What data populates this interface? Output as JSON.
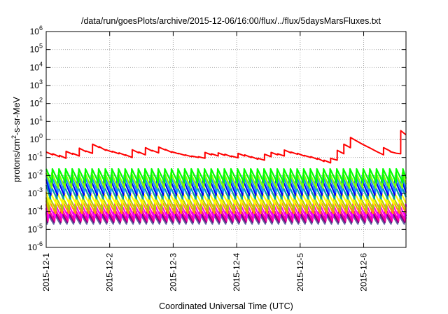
{
  "chart_data": {
    "type": "line",
    "title": "/data/run/goesPlots/archive/2015-12-06/16:00/flux/../flux/5daysMarsFluxes.txt",
    "xlabel": "Coordinated Universal Time (UTC)",
    "ylabel": {
      "prefix": "protons/cm",
      "sup": "2",
      "suffix": "-s-sr-MeV"
    },
    "yscale": "log",
    "ylim": [
      1e-06,
      1000000.0
    ],
    "y_ticks": [
      {
        "base": "10",
        "exp": "-6",
        "value": 1e-06
      },
      {
        "base": "10",
        "exp": "-5",
        "value": 1e-05
      },
      {
        "base": "10",
        "exp": "-4",
        "value": 0.0001
      },
      {
        "base": "10",
        "exp": "-3",
        "value": 0.001
      },
      {
        "base": "10",
        "exp": "-2",
        "value": 0.01
      },
      {
        "base": "10",
        "exp": "-1",
        "value": 0.1
      },
      {
        "base": "10",
        "exp": "0",
        "value": 1
      },
      {
        "base": "10",
        "exp": "1",
        "value": 10
      },
      {
        "base": "10",
        "exp": "2",
        "value": 100
      },
      {
        "base": "10",
        "exp": "3",
        "value": 1000
      },
      {
        "base": "10",
        "exp": "4",
        "value": 10000
      },
      {
        "base": "10",
        "exp": "5",
        "value": 100000
      },
      {
        "base": "10",
        "exp": "6",
        "value": 1000000
      }
    ],
    "xlim": [
      "2015-12-01",
      "2015-12-06 16:00"
    ],
    "x_ticks": [
      {
        "label": "2015-12-1",
        "value": "2015-12-01"
      },
      {
        "label": "2015-12-2",
        "value": "2015-12-02"
      },
      {
        "label": "2015-12-3",
        "value": "2015-12-03"
      },
      {
        "label": "2015-12-4",
        "value": "2015-12-04"
      },
      {
        "label": "2015-12-5",
        "value": "2015-12-05"
      },
      {
        "label": "2015-12-6",
        "value": "2015-12-06"
      }
    ],
    "grid": true,
    "series": [
      {
        "color": "#ff0000",
        "points": [
          [
            "2015-12-01 00:00",
            0.2
          ],
          [
            "2015-12-01 02:30",
            0.14
          ],
          [
            "2015-12-01 02:31",
            0.16
          ],
          [
            "2015-12-01 05:00",
            0.11
          ],
          [
            "2015-12-01 05:01",
            0.13
          ],
          [
            "2015-12-01 07:30",
            0.09
          ],
          [
            "2015-12-01 07:31",
            0.22
          ],
          [
            "2015-12-01 10:00",
            0.15
          ],
          [
            "2015-12-01 10:01",
            0.17
          ],
          [
            "2015-12-01 12:30",
            0.12
          ],
          [
            "2015-12-01 12:31",
            0.33
          ],
          [
            "2015-12-01 15:00",
            0.21
          ],
          [
            "2015-12-01 15:01",
            0.23
          ],
          [
            "2015-12-01 17:30",
            0.17
          ],
          [
            "2015-12-01 17:31",
            0.55
          ],
          [
            "2015-12-01 20:00",
            0.36
          ],
          [
            "2015-12-01 20:01",
            0.4
          ],
          [
            "2015-12-01 22:30",
            0.25
          ],
          [
            "2015-12-01 22:31",
            0.27
          ],
          [
            "2015-12-02 01:00",
            0.2
          ],
          [
            "2015-12-02 01:01",
            0.22
          ],
          [
            "2015-12-02 03:30",
            0.16
          ],
          [
            "2015-12-02 03:31",
            0.18
          ],
          [
            "2015-12-02 06:00",
            0.13
          ],
          [
            "2015-12-02 06:01",
            0.14
          ],
          [
            "2015-12-02 08:30",
            0.1
          ],
          [
            "2015-12-02 08:31",
            0.27
          ],
          [
            "2015-12-02 11:00",
            0.18
          ],
          [
            "2015-12-02 11:01",
            0.2
          ],
          [
            "2015-12-02 13:30",
            0.14
          ],
          [
            "2015-12-02 13:31",
            0.35
          ],
          [
            "2015-12-02 16:00",
            0.23
          ],
          [
            "2015-12-02 16:01",
            0.25
          ],
          [
            "2015-12-02 18:30",
            0.18
          ],
          [
            "2015-12-02 18:31",
            0.38
          ],
          [
            "2015-12-02 21:00",
            0.26
          ],
          [
            "2015-12-02 21:01",
            0.28
          ],
          [
            "2015-12-02 23:30",
            0.19
          ],
          [
            "2015-12-02 23:31",
            0.21
          ],
          [
            "2015-12-03 02:00",
            0.16
          ],
          [
            "2015-12-03 02:01",
            0.17
          ],
          [
            "2015-12-03 04:30",
            0.13
          ],
          [
            "2015-12-03 04:31",
            0.14
          ],
          [
            "2015-12-03 07:00",
            0.11
          ],
          [
            "2015-12-03 07:01",
            0.12
          ],
          [
            "2015-12-03 09:30",
            0.1
          ],
          [
            "2015-12-03 09:31",
            0.11
          ],
          [
            "2015-12-03 12:00",
            0.09
          ],
          [
            "2015-12-03 12:01",
            0.19
          ],
          [
            "2015-12-03 14:30",
            0.14
          ],
          [
            "2015-12-03 14:31",
            0.16
          ],
          [
            "2015-12-03 17:00",
            0.12
          ],
          [
            "2015-12-03 17:01",
            0.18
          ],
          [
            "2015-12-03 19:30",
            0.13
          ],
          [
            "2015-12-03 19:31",
            0.15
          ],
          [
            "2015-12-03 22:00",
            0.11
          ],
          [
            "2015-12-03 22:01",
            0.12
          ],
          [
            "2015-12-04 00:30",
            0.095
          ],
          [
            "2015-12-04 00:31",
            0.17
          ],
          [
            "2015-12-04 03:00",
            0.12
          ],
          [
            "2015-12-04 03:01",
            0.14
          ],
          [
            "2015-12-04 05:30",
            0.1
          ],
          [
            "2015-12-04 05:31",
            0.11
          ],
          [
            "2015-12-04 08:00",
            0.08
          ],
          [
            "2015-12-04 08:01",
            0.09
          ],
          [
            "2015-12-04 10:30",
            0.07
          ],
          [
            "2015-12-04 10:31",
            0.15
          ],
          [
            "2015-12-04 13:00",
            0.11
          ],
          [
            "2015-12-04 13:01",
            0.19
          ],
          [
            "2015-12-04 15:30",
            0.14
          ],
          [
            "2015-12-04 15:31",
            0.16
          ],
          [
            "2015-12-04 18:00",
            0.12
          ],
          [
            "2015-12-04 18:01",
            0.26
          ],
          [
            "2015-12-04 20:30",
            0.18
          ],
          [
            "2015-12-04 20:31",
            0.2
          ],
          [
            "2015-12-04 23:00",
            0.15
          ],
          [
            "2015-12-04 23:01",
            0.17
          ],
          [
            "2015-12-05 01:30",
            0.12
          ],
          [
            "2015-12-05 01:31",
            0.13
          ],
          [
            "2015-12-05 04:00",
            0.1
          ],
          [
            "2015-12-05 04:01",
            0.11
          ],
          [
            "2015-12-05 06:30",
            0.08
          ],
          [
            "2015-12-05 06:31",
            0.09
          ],
          [
            "2015-12-05 09:00",
            0.06
          ],
          [
            "2015-12-05 09:01",
            0.07
          ],
          [
            "2015-12-05 11:30",
            0.05
          ],
          [
            "2015-12-05 11:31",
            0.09
          ],
          [
            "2015-12-05 14:00",
            0.07
          ],
          [
            "2015-12-05 14:01",
            0.25
          ],
          [
            "2015-12-05 16:30",
            0.16
          ],
          [
            "2015-12-05 16:31",
            0.55
          ],
          [
            "2015-12-05 19:00",
            0.35
          ],
          [
            "2015-12-05 19:01",
            1.3
          ],
          [
            "2015-12-05 21:30",
            0.8
          ],
          [
            "2015-12-06 00:00",
            0.5
          ],
          [
            "2015-12-06 02:30",
            0.33
          ],
          [
            "2015-12-06 05:00",
            0.21
          ],
          [
            "2015-12-06 07:30",
            0.14
          ],
          [
            "2015-12-06 07:31",
            0.35
          ],
          [
            "2015-12-06 10:00",
            0.23
          ],
          [
            "2015-12-06 10:01",
            0.21
          ],
          [
            "2015-12-06 12:30",
            0.17
          ],
          [
            "2015-12-06 14:00",
            0.16
          ],
          [
            "2015-12-06 14:01",
            3.1
          ],
          [
            "2015-12-06 16:00",
            1.8
          ]
        ]
      },
      {
        "color": "#00ff00",
        "min": 0.004,
        "max": 0.023
      },
      {
        "color": "#80ff00",
        "min": 0.002,
        "max": 0.014
      },
      {
        "color": "#1e90ff",
        "min": 0.0012,
        "max": 0.01
      },
      {
        "color": "#0000ff",
        "min": 0.0008,
        "max": 0.006
      },
      {
        "color": "#00a0a0",
        "min": 0.0005,
        "max": 0.003
      },
      {
        "color": "#ffff00",
        "min": 0.00025,
        "max": 0.0012
      },
      {
        "color": "#b0d000",
        "min": 0.00012,
        "max": 0.0006
      },
      {
        "color": "#ff9900",
        "min": 8e-05,
        "max": 0.0004
      },
      {
        "color": "#ff00ff",
        "min": 4.5e-05,
        "max": 0.00025
      },
      {
        "color": "#ff00a0",
        "min": 3e-05,
        "max": 0.00015
      },
      {
        "color": "#800080",
        "min": 2.5e-05,
        "max": 0.0001
      },
      {
        "color": "#6060a0",
        "min": 2e-05,
        "max": 8e-05
      }
    ],
    "pulse_period_hours": 2.5
  }
}
